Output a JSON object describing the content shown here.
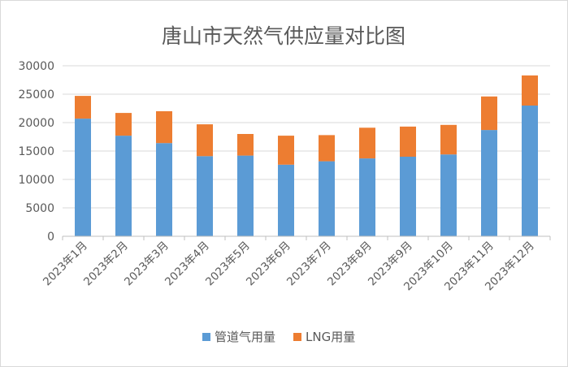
{
  "chart_data": {
    "type": "bar",
    "stacked": true,
    "title": "唐山市天然气供应量对比图",
    "xlabel": "",
    "ylabel": "",
    "categories": [
      "2023年1月",
      "2023年2月",
      "2023年3月",
      "2023年4月",
      "2023年5月",
      "2023年6月",
      "2023年7月",
      "2023年8月",
      "2023年9月",
      "2023年10月",
      "2023年11月",
      "2023年12月"
    ],
    "series": [
      {
        "name": "管道气用量",
        "color": "#5b9bd5",
        "values": [
          20700,
          17700,
          16400,
          14100,
          14200,
          12600,
          13200,
          13700,
          14000,
          14400,
          18700,
          23000
        ]
      },
      {
        "name": "LNG用量",
        "color": "#ed7d31",
        "values": [
          4000,
          4000,
          5600,
          5600,
          3800,
          5100,
          4600,
          5400,
          5300,
          5200,
          5900,
          5300
        ]
      }
    ],
    "ylim": [
      0,
      30000
    ],
    "yticks": [
      "0",
      "5000",
      "10000",
      "15000",
      "20000",
      "25000",
      "30000"
    ],
    "grid": true,
    "legend_position": "bottom"
  }
}
